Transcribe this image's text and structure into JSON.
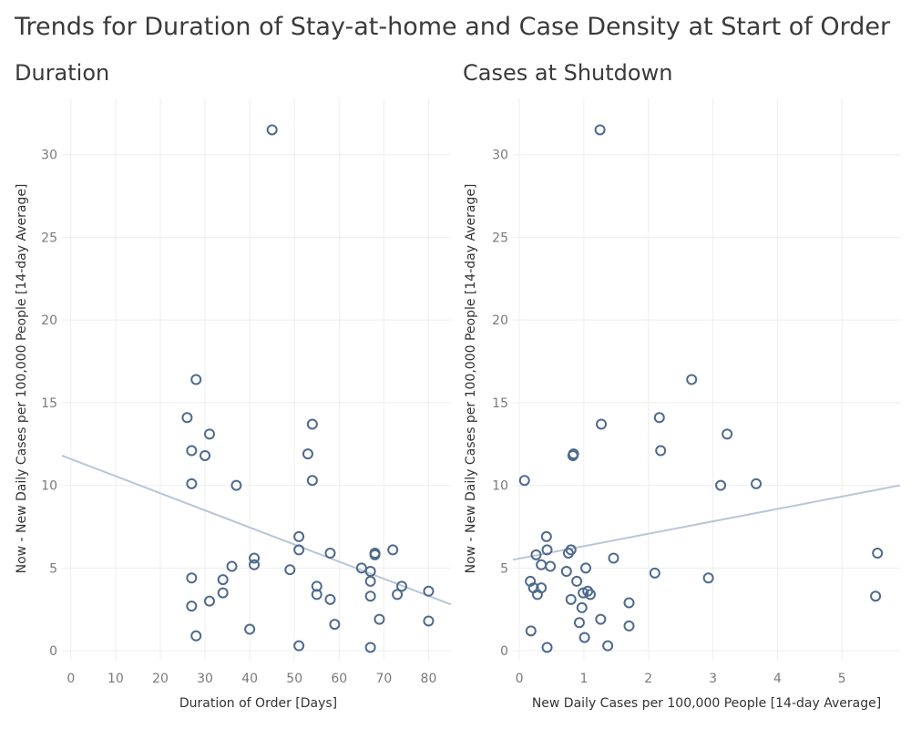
{
  "title": "Trends for Duration of Stay-at-home and Case Density at Start of Order",
  "colors": {
    "marker": "#4e6a8c",
    "trend": "#b9c6d8",
    "grid": "#eeeeee"
  },
  "chart_data": [
    {
      "type": "scatter",
      "title": "Duration",
      "xlabel": "Duration of Order [Days]",
      "ylabel": "Now - New Daily Cases per 100,000 People [14-day Average]",
      "xlim": [
        -2,
        85
      ],
      "ylim": [
        -0.6,
        33.4
      ],
      "xticks": [
        0,
        10,
        20,
        30,
        40,
        50,
        60,
        70,
        80
      ],
      "yticks": [
        0,
        5,
        10,
        15,
        20,
        25,
        30
      ],
      "trendline": {
        "x": [
          -2,
          85
        ],
        "y": [
          11.8,
          2.8
        ]
      },
      "points": [
        {
          "x": 45,
          "y": 31.5
        },
        {
          "x": 28,
          "y": 16.4
        },
        {
          "x": 26,
          "y": 14.1
        },
        {
          "x": 31,
          "y": 13.1
        },
        {
          "x": 27,
          "y": 12.1
        },
        {
          "x": 30,
          "y": 11.8
        },
        {
          "x": 27,
          "y": 10.1
        },
        {
          "x": 37,
          "y": 10.0
        },
        {
          "x": 54,
          "y": 13.7
        },
        {
          "x": 53,
          "y": 11.9
        },
        {
          "x": 54,
          "y": 10.3
        },
        {
          "x": 51,
          "y": 6.9
        },
        {
          "x": 51,
          "y": 6.1
        },
        {
          "x": 58,
          "y": 5.9
        },
        {
          "x": 41,
          "y": 5.6
        },
        {
          "x": 41,
          "y": 5.2
        },
        {
          "x": 36,
          "y": 5.1
        },
        {
          "x": 49,
          "y": 4.9
        },
        {
          "x": 27,
          "y": 4.4
        },
        {
          "x": 34,
          "y": 4.3
        },
        {
          "x": 34,
          "y": 3.5
        },
        {
          "x": 27,
          "y": 2.7
        },
        {
          "x": 31,
          "y": 3.0
        },
        {
          "x": 28,
          "y": 0.9
        },
        {
          "x": 40,
          "y": 1.3
        },
        {
          "x": 51,
          "y": 0.3
        },
        {
          "x": 55,
          "y": 3.9
        },
        {
          "x": 55,
          "y": 3.4
        },
        {
          "x": 58,
          "y": 3.1
        },
        {
          "x": 59,
          "y": 1.6
        },
        {
          "x": 65,
          "y": 5.0
        },
        {
          "x": 67,
          "y": 4.8
        },
        {
          "x": 67,
          "y": 4.2
        },
        {
          "x": 67,
          "y": 3.3
        },
        {
          "x": 67,
          "y": 0.2
        },
        {
          "x": 68,
          "y": 5.9
        },
        {
          "x": 68,
          "y": 5.8
        },
        {
          "x": 69,
          "y": 1.9
        },
        {
          "x": 72,
          "y": 6.1
        },
        {
          "x": 73,
          "y": 3.4
        },
        {
          "x": 74,
          "y": 3.9
        },
        {
          "x": 80,
          "y": 3.6
        },
        {
          "x": 80,
          "y": 1.8
        }
      ]
    },
    {
      "type": "scatter",
      "title": "Cases at Shutdown",
      "xlabel": "New Daily Cases per 100,000 People [14-day Average]",
      "ylabel": "Now - New Daily Cases per 100,000 People [14-day Average]",
      "xlim": [
        -0.1,
        5.9
      ],
      "ylim": [
        -0.6,
        33.4
      ],
      "xticks": [
        0,
        1,
        2,
        3,
        4,
        5
      ],
      "yticks": [
        0,
        5,
        10,
        15,
        20,
        25,
        30
      ],
      "trendline": {
        "x": [
          -0.1,
          5.9
        ],
        "y": [
          5.5,
          10.0
        ]
      },
      "points": [
        {
          "x": 1.25,
          "y": 31.5
        },
        {
          "x": 2.67,
          "y": 16.4
        },
        {
          "x": 2.17,
          "y": 14.1
        },
        {
          "x": 1.27,
          "y": 13.7
        },
        {
          "x": 3.22,
          "y": 13.1
        },
        {
          "x": 2.19,
          "y": 12.1
        },
        {
          "x": 0.84,
          "y": 11.9
        },
        {
          "x": 0.83,
          "y": 11.8
        },
        {
          "x": 0.08,
          "y": 10.3
        },
        {
          "x": 3.12,
          "y": 10.0
        },
        {
          "x": 3.67,
          "y": 10.1
        },
        {
          "x": 0.42,
          "y": 6.9
        },
        {
          "x": 0.43,
          "y": 6.1
        },
        {
          "x": 0.8,
          "y": 6.1
        },
        {
          "x": 0.76,
          "y": 5.9
        },
        {
          "x": 0.26,
          "y": 5.8
        },
        {
          "x": 1.46,
          "y": 5.6
        },
        {
          "x": 0.34,
          "y": 5.2
        },
        {
          "x": 0.48,
          "y": 5.1
        },
        {
          "x": 1.03,
          "y": 5.0
        },
        {
          "x": 0.73,
          "y": 4.8
        },
        {
          "x": 2.1,
          "y": 4.7
        },
        {
          "x": 0.17,
          "y": 4.2
        },
        {
          "x": 0.89,
          "y": 4.2
        },
        {
          "x": 2.93,
          "y": 4.4
        },
        {
          "x": 0.22,
          "y": 3.8
        },
        {
          "x": 0.34,
          "y": 3.8
        },
        {
          "x": 0.28,
          "y": 3.4
        },
        {
          "x": 0.99,
          "y": 3.5
        },
        {
          "x": 1.06,
          "y": 3.6
        },
        {
          "x": 1.1,
          "y": 3.4
        },
        {
          "x": 0.8,
          "y": 3.1
        },
        {
          "x": 0.97,
          "y": 2.6
        },
        {
          "x": 1.7,
          "y": 2.9
        },
        {
          "x": 1.26,
          "y": 1.9
        },
        {
          "x": 0.93,
          "y": 1.7
        },
        {
          "x": 1.7,
          "y": 1.5
        },
        {
          "x": 0.18,
          "y": 1.2
        },
        {
          "x": 1.01,
          "y": 0.8
        },
        {
          "x": 0.43,
          "y": 0.2
        },
        {
          "x": 1.37,
          "y": 0.3
        },
        {
          "x": 5.55,
          "y": 5.9
        },
        {
          "x": 5.52,
          "y": 3.3
        }
      ]
    }
  ]
}
